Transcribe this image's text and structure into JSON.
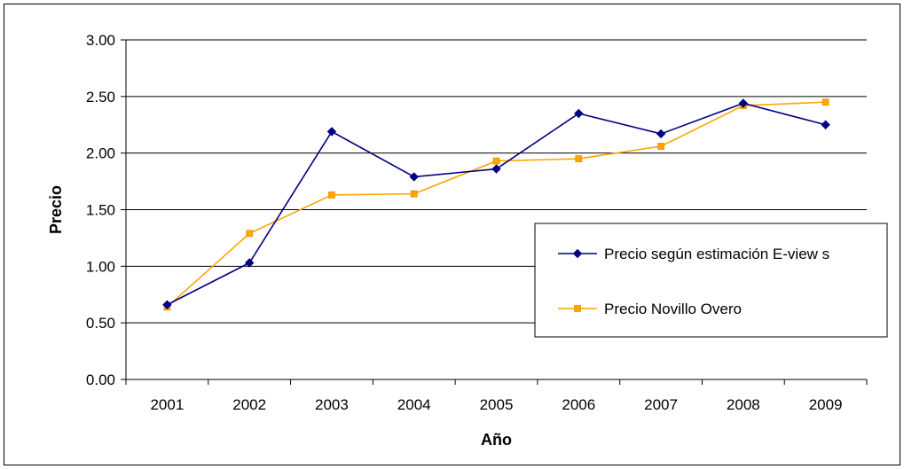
{
  "chart_data": {
    "type": "line",
    "title": "",
    "xlabel": "Año",
    "ylabel": "Precio",
    "categories": [
      "2001",
      "2002",
      "2003",
      "2004",
      "2005",
      "2006",
      "2007",
      "2008",
      "2009"
    ],
    "ylim": [
      0,
      3
    ],
    "yticks": [
      "0.00",
      "0.50",
      "1.00",
      "1.50",
      "2.00",
      "2.50",
      "3.00"
    ],
    "grid": true,
    "legend_position": "right",
    "series": [
      {
        "name": "Precio según estimación E-view s",
        "color": "#000080",
        "marker": "diamond",
        "values": [
          0.66,
          1.03,
          2.19,
          1.79,
          1.86,
          2.35,
          2.17,
          2.44,
          2.25
        ]
      },
      {
        "name": "Precio Novillo Overo",
        "color": "#FFA500",
        "marker": "square",
        "values": [
          0.64,
          1.29,
          1.63,
          1.64,
          1.93,
          1.95,
          2.06,
          2.42,
          2.45
        ]
      }
    ]
  }
}
